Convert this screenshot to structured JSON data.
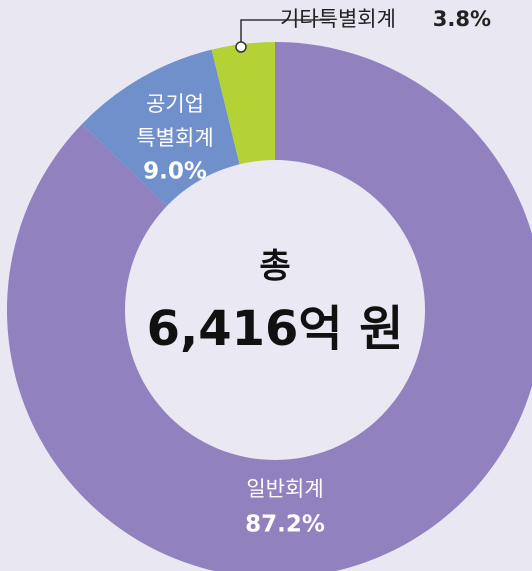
{
  "chart_data": {
    "type": "donut",
    "categories": [
      "일반회계",
      "공기업 특별회계",
      "기타특별회계"
    ],
    "values": [
      87.2,
      9.0,
      3.8
    ],
    "value_labels": [
      "87.2%",
      "9.0%",
      "3.8%"
    ],
    "colors": [
      "#9181be",
      "#7090cc",
      "#b4d235"
    ],
    "total_label": "총",
    "total": "6,416억 원"
  }
}
